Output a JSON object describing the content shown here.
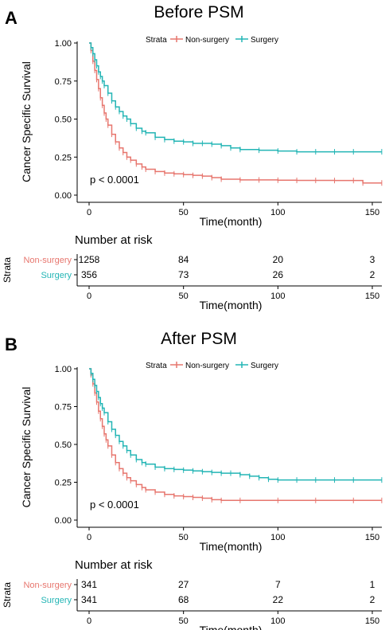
{
  "chart_data": [
    {
      "type": "line",
      "panel_letter": "A",
      "title": "Before PSM",
      "xlabel": "Time(month)",
      "ylabel": "Cancer Specific Survival",
      "xlim": [
        0,
        155
      ],
      "ylim": [
        0,
        1.0
      ],
      "x_ticks": [
        0,
        50,
        100,
        150
      ],
      "y_ticks": [
        0.0,
        0.25,
        0.5,
        0.75,
        1.0
      ],
      "y_tick_labels": [
        "0.00",
        "0.25",
        "0.50",
        "0.75",
        "1.00"
      ],
      "legend": {
        "title": "Strata",
        "position": "top",
        "entries": [
          "Non-surgery",
          "Surgery"
        ]
      },
      "annotation": "p < 0.0001",
      "series": [
        {
          "name": "Non-surgery",
          "color": "#E7766E",
          "points": [
            [
              0,
              1.0
            ],
            [
              1,
              0.95
            ],
            [
              2,
              0.88
            ],
            [
              3,
              0.82
            ],
            [
              4,
              0.76
            ],
            [
              5,
              0.7
            ],
            [
              6,
              0.64
            ],
            [
              7,
              0.59
            ],
            [
              8,
              0.54
            ],
            [
              9,
              0.5
            ],
            [
              10,
              0.46
            ],
            [
              12,
              0.4
            ],
            [
              14,
              0.35
            ],
            [
              16,
              0.31
            ],
            [
              18,
              0.28
            ],
            [
              20,
              0.25
            ],
            [
              22,
              0.23
            ],
            [
              25,
              0.205
            ],
            [
              28,
              0.185
            ],
            [
              30,
              0.17
            ],
            [
              35,
              0.155
            ],
            [
              40,
              0.145
            ],
            [
              45,
              0.14
            ],
            [
              50,
              0.135
            ],
            [
              55,
              0.13
            ],
            [
              60,
              0.125
            ],
            [
              65,
              0.115
            ],
            [
              70,
              0.105
            ],
            [
              80,
              0.1
            ],
            [
              90,
              0.1
            ],
            [
              100,
              0.098
            ],
            [
              110,
              0.097
            ],
            [
              120,
              0.097
            ],
            [
              130,
              0.096
            ],
            [
              140,
              0.096
            ],
            [
              145,
              0.08
            ],
            [
              155,
              0.08
            ]
          ]
        },
        {
          "name": "Surgery",
          "color": "#23B5B5",
          "points": [
            [
              0,
              1.0
            ],
            [
              1,
              0.97
            ],
            [
              2,
              0.93
            ],
            [
              3,
              0.89
            ],
            [
              4,
              0.85
            ],
            [
              5,
              0.81
            ],
            [
              6,
              0.78
            ],
            [
              7,
              0.75
            ],
            [
              8,
              0.72
            ],
            [
              10,
              0.67
            ],
            [
              12,
              0.62
            ],
            [
              14,
              0.58
            ],
            [
              16,
              0.55
            ],
            [
              18,
              0.52
            ],
            [
              20,
              0.5
            ],
            [
              22,
              0.47
            ],
            [
              25,
              0.44
            ],
            [
              28,
              0.42
            ],
            [
              30,
              0.41
            ],
            [
              35,
              0.38
            ],
            [
              40,
              0.365
            ],
            [
              45,
              0.355
            ],
            [
              50,
              0.35
            ],
            [
              55,
              0.34
            ],
            [
              60,
              0.34
            ],
            [
              65,
              0.335
            ],
            [
              70,
              0.325
            ],
            [
              75,
              0.31
            ],
            [
              80,
              0.3
            ],
            [
              90,
              0.295
            ],
            [
              100,
              0.29
            ],
            [
              110,
              0.285
            ],
            [
              120,
              0.285
            ],
            [
              130,
              0.285
            ],
            [
              140,
              0.285
            ],
            [
              155,
              0.285
            ]
          ]
        }
      ],
      "risk_table": {
        "heading": "Number at risk",
        "strata_label": "Strata",
        "xlabel": "Time(month)",
        "time_points": [
          0,
          50,
          100,
          150
        ],
        "rows": [
          {
            "name": "Non-surgery",
            "color": "#E7766E",
            "values": [
              "1258",
              "84",
              "20",
              "3"
            ]
          },
          {
            "name": "Surgery",
            "color": "#23B5B5",
            "values": [
              "356",
              "73",
              "26",
              "2"
            ]
          }
        ]
      }
    },
    {
      "type": "line",
      "panel_letter": "B",
      "title": "After PSM",
      "xlabel": "Time(month)",
      "ylabel": "Cancer Specific Survival",
      "xlim": [
        0,
        155
      ],
      "ylim": [
        0,
        1.0
      ],
      "x_ticks": [
        0,
        50,
        100,
        150
      ],
      "y_ticks": [
        0.0,
        0.25,
        0.5,
        0.75,
        1.0
      ],
      "y_tick_labels": [
        "0.00",
        "0.25",
        "0.50",
        "0.75",
        "1.00"
      ],
      "legend": {
        "title": "Strata",
        "position": "top",
        "entries": [
          "Non-surgery",
          "Surgery"
        ]
      },
      "annotation": "p < 0.0001",
      "series": [
        {
          "name": "Non-surgery",
          "color": "#E7766E",
          "points": [
            [
              0,
              1.0
            ],
            [
              1,
              0.96
            ],
            [
              2,
              0.9
            ],
            [
              3,
              0.84
            ],
            [
              4,
              0.78
            ],
            [
              5,
              0.72
            ],
            [
              6,
              0.67
            ],
            [
              7,
              0.62
            ],
            [
              8,
              0.57
            ],
            [
              9,
              0.53
            ],
            [
              10,
              0.49
            ],
            [
              12,
              0.43
            ],
            [
              14,
              0.38
            ],
            [
              16,
              0.34
            ],
            [
              18,
              0.31
            ],
            [
              20,
              0.28
            ],
            [
              22,
              0.26
            ],
            [
              25,
              0.235
            ],
            [
              28,
              0.215
            ],
            [
              30,
              0.2
            ],
            [
              35,
              0.185
            ],
            [
              40,
              0.17
            ],
            [
              45,
              0.16
            ],
            [
              50,
              0.155
            ],
            [
              55,
              0.15
            ],
            [
              60,
              0.145
            ],
            [
              65,
              0.135
            ],
            [
              70,
              0.13
            ],
            [
              80,
              0.13
            ],
            [
              100,
              0.13
            ],
            [
              120,
              0.13
            ],
            [
              140,
              0.13
            ],
            [
              155,
              0.13
            ]
          ]
        },
        {
          "name": "Surgery",
          "color": "#23B5B5",
          "points": [
            [
              0,
              1.0
            ],
            [
              1,
              0.97
            ],
            [
              2,
              0.93
            ],
            [
              3,
              0.89
            ],
            [
              4,
              0.85
            ],
            [
              5,
              0.81
            ],
            [
              6,
              0.77
            ],
            [
              7,
              0.74
            ],
            [
              8,
              0.71
            ],
            [
              10,
              0.65
            ],
            [
              12,
              0.6
            ],
            [
              14,
              0.56
            ],
            [
              16,
              0.52
            ],
            [
              18,
              0.49
            ],
            [
              20,
              0.46
            ],
            [
              22,
              0.43
            ],
            [
              25,
              0.4
            ],
            [
              28,
              0.38
            ],
            [
              30,
              0.37
            ],
            [
              35,
              0.35
            ],
            [
              40,
              0.34
            ],
            [
              45,
              0.335
            ],
            [
              50,
              0.33
            ],
            [
              55,
              0.325
            ],
            [
              60,
              0.32
            ],
            [
              65,
              0.315
            ],
            [
              70,
              0.31
            ],
            [
              75,
              0.31
            ],
            [
              80,
              0.3
            ],
            [
              85,
              0.29
            ],
            [
              90,
              0.28
            ],
            [
              95,
              0.27
            ],
            [
              100,
              0.265
            ],
            [
              110,
              0.265
            ],
            [
              120,
              0.265
            ],
            [
              130,
              0.265
            ],
            [
              140,
              0.265
            ],
            [
              155,
              0.265
            ]
          ]
        }
      ],
      "risk_table": {
        "heading": "Number at risk",
        "strata_label": "Strata",
        "xlabel": "Time(month)",
        "time_points": [
          0,
          50,
          100,
          150
        ],
        "rows": [
          {
            "name": "Non-surgery",
            "color": "#E7766E",
            "values": [
              "341",
              "27",
              "7",
              "1"
            ]
          },
          {
            "name": "Surgery",
            "color": "#23B5B5",
            "values": [
              "341",
              "68",
              "22",
              "2"
            ]
          }
        ]
      }
    }
  ]
}
